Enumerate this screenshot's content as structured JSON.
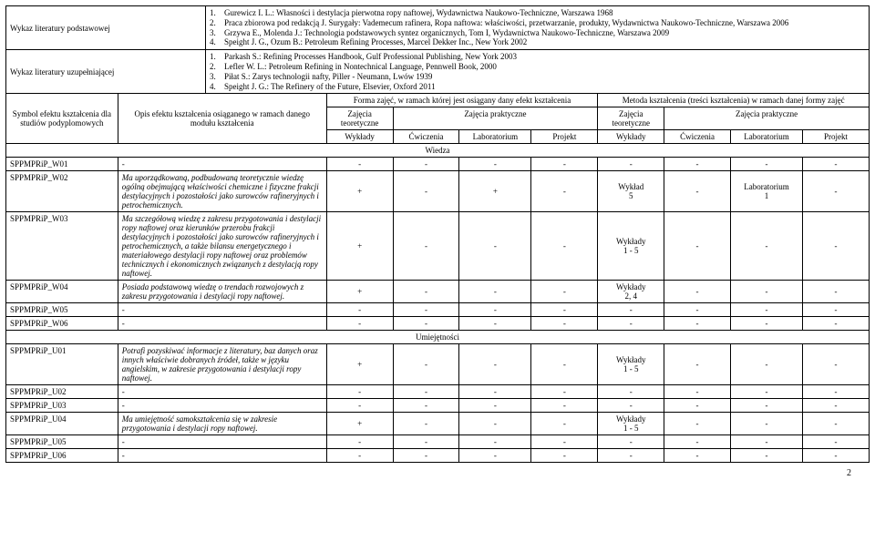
{
  "literature": {
    "primary": {
      "label": "Wykaz literatury podstawowej",
      "items": [
        "Gurewicz I. L.: Własności i destylacja pierwotna ropy naftowej, Wydawnictwa Naukowo-Techniczne, Warszawa 1968",
        "Praca zbiorowa pod redakcją J. Surygały: Vademecum rafinera, Ropa naftowa: właściwości, przetwarzanie, produkty, Wydawnictwa Naukowo-Techniczne, Warszawa 2006",
        "Grzywa E., Molenda J.: Technologia podstawowych syntez organicznych, Tom I, Wydawnictwa Naukowo-Techniczne, Warszawa 2009",
        "Speight J. G., Ozum B.: Petroleum Refining Processes, Marcel Dekker Inc., New York 2002"
      ]
    },
    "supplementary": {
      "label": "Wykaz literatury uzupełniającej",
      "items": [
        "Parkash S.: Refining Processes Handbook, Gulf Professional Publishing, New York 2003",
        "Lefler W. L.: Petroleum Refining in Nontechnical Language, Pennwell Book, 2000",
        "Piłat S.: Zarys technologii nafty, Piller - Neumann, Lwów 1939",
        "Speight J. G.: The Refinery of the Future, Elsevier, Oxford 2011"
      ]
    }
  },
  "headers": {
    "symbol": "Symbol efektu kształcenia dla studiów podyplomowych",
    "opis": "Opis efektu kształcenia osiąganego w ramach danego modułu kształcenia",
    "forma": "Forma zajęć, w ramach której jest osiągany dany efekt kształcenia",
    "metoda": "Metoda kształcenia (treści kształcenia) w ramach danej formy zajęć",
    "zajecia_teoretyczne": "Zajęcia teoretyczne",
    "zajecia_praktyczne": "Zajęcia praktyczne",
    "wyklady": "Wykłady",
    "cwiczenia": "Ćwiczenia",
    "laboratorium": "Laboratorium",
    "projekt": "Projekt",
    "wiedza": "Wiedza",
    "umiejetnosci": "Umiejętności"
  },
  "rows": [
    {
      "sym": "SPPMPRiP_W01",
      "opis": "-",
      "c": [
        "-",
        "-",
        "-",
        "-",
        "-",
        "-",
        "-",
        "-"
      ]
    },
    {
      "sym": "SPPMPRiP_W02",
      "opis": "Ma uporządkowaną, podbudowaną teoretycznie wiedzę ogólną obejmującą właściwości chemiczne i fizyczne frakcji destylacyjnych i pozostałości jako surowców rafineryjnych i petrochemicznych.",
      "c": [
        "+",
        "-",
        "+",
        "-",
        "Wykład\n5",
        "-",
        "Laboratorium\n1",
        "-"
      ]
    },
    {
      "sym": "SPPMPRiP_W03",
      "opis": "Ma szczegółową wiedzę z zakresu przygotowania i destylacji ropy naftowej oraz kierunków przerobu frakcji destylacyjnych i pozostałości jako surowców rafineryjnych i petrochemicznych, a także bilansu energetycznego i materiałowego destylacji ropy naftowej oraz problemów technicznych i ekonomicznych związanych z destylacją ropy naftowej.",
      "c": [
        "+",
        "-",
        "-",
        "-",
        "Wykłady\n1 - 5",
        "-",
        "-",
        "-"
      ]
    },
    {
      "sym": "SPPMPRiP_W04",
      "opis": "Posiada podstawową wiedzę o trendach rozwojowych z zakresu przygotowania i destylacji ropy naftowej.",
      "c": [
        "+",
        "-",
        "-",
        "-",
        "Wykłady\n2, 4",
        "-",
        "-",
        "-"
      ]
    },
    {
      "sym": "SPPMPRiP_W05",
      "opis": "-",
      "c": [
        "-",
        "-",
        "-",
        "-",
        "-",
        "-",
        "-",
        "-"
      ]
    },
    {
      "sym": "SPPMPRiP_W06",
      "opis": "-",
      "c": [
        "-",
        "-",
        "-",
        "-",
        "-",
        "-",
        "-",
        "-"
      ]
    }
  ],
  "rows2": [
    {
      "sym": "SPPMPRiP_U01",
      "opis": "Potrafi pozyskiwać informacje z literatury, baz danych oraz innych właściwie dobranych źródeł, także w języku angielskim, w zakresie przygotowania i destylacji ropy naftowej.",
      "c": [
        "+",
        "-",
        "-",
        "-",
        "Wykłady\n1 - 5",
        "-",
        "-",
        "-"
      ]
    },
    {
      "sym": "SPPMPRiP_U02",
      "opis": "-",
      "c": [
        "-",
        "-",
        "-",
        "-",
        "-",
        "-",
        "-",
        "-"
      ]
    },
    {
      "sym": "SPPMPRiP_U03",
      "opis": "-",
      "c": [
        "-",
        "-",
        "-",
        "-",
        "-",
        "-",
        "-",
        "-"
      ]
    },
    {
      "sym": "SPPMPRiP_U04",
      "opis": "Ma umiejętność samokształcenia się w zakresie przygotowania i destylacji ropy naftowej.",
      "c": [
        "+",
        "-",
        "-",
        "-",
        "Wykłady\n1 - 5",
        "-",
        "-",
        "-"
      ]
    },
    {
      "sym": "SPPMPRiP_U05",
      "opis": "-",
      "c": [
        "-",
        "-",
        "-",
        "-",
        "-",
        "-",
        "-",
        "-"
      ]
    },
    {
      "sym": "SPPMPRiP_U06",
      "opis": "-",
      "c": [
        "-",
        "-",
        "-",
        "-",
        "-",
        "-",
        "-",
        "-"
      ]
    }
  ],
  "page": "2"
}
